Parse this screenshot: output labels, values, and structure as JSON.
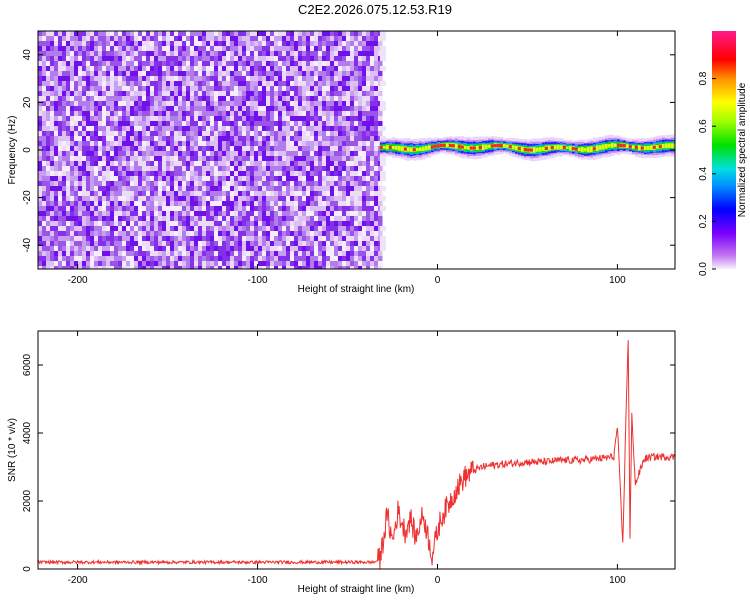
{
  "title": "C2E2.2026.075.12.53.R19",
  "chart_data": [
    {
      "type": "heatmap",
      "xlabel": "Height of straight line (km)",
      "ylabel": "Frequency (Hz)",
      "xlim": [
        -222,
        132
      ],
      "ylim": [
        -50,
        50
      ],
      "x_ticks": [
        -200,
        -100,
        0,
        100
      ],
      "y_ticks": [
        -40,
        -20,
        0,
        20,
        40
      ],
      "noise_region_x": [
        -222,
        -32
      ],
      "signal_region_x": [
        -32,
        132
      ],
      "signal_center_freq_hz": 1,
      "colorbar": {
        "label": "Normalized spectral amplitude",
        "range": [
          0,
          1
        ],
        "ticks": [
          "0.0",
          "0.2",
          "0.4",
          "0.6",
          "0.8"
        ],
        "colormap": "rainbow (magenta-blue-cyan-green-yellow-red-pink)"
      },
      "grid": false
    },
    {
      "type": "line",
      "xlabel": "Height of straight line (km)",
      "ylabel": "SNR (10 * v/v)",
      "xlim": [
        -222,
        132
      ],
      "ylim": [
        0,
        7000
      ],
      "x_ticks": [
        -200,
        -100,
        0,
        100
      ],
      "y_ticks": [
        0,
        2000,
        4000,
        6000
      ],
      "line_color": "#ee3030",
      "grid": false,
      "series": [
        {
          "x": [
            -222,
            -200,
            -150,
            -100,
            -50,
            -35,
            -32,
            -30,
            -28,
            -25,
            -22,
            -20,
            -18,
            -15,
            -12,
            -10,
            -8,
            -5,
            -3,
            0,
            2,
            5,
            10,
            15,
            20,
            25,
            30,
            40,
            50,
            60,
            70,
            80,
            90,
            98,
            100,
            103,
            105,
            106,
            107,
            108,
            110,
            115,
            120,
            125,
            132
          ],
          "y": [
            200,
            200,
            200,
            200,
            200,
            200,
            300,
            900,
            1600,
            800,
            1700,
            1400,
            1100,
            1500,
            900,
            1300,
            1600,
            900,
            400,
            1100,
            1500,
            1800,
            2300,
            2700,
            2900,
            3000,
            3050,
            3100,
            3150,
            3150,
            3200,
            3200,
            3250,
            3300,
            4200,
            700,
            5000,
            6800,
            900,
            4500,
            2500,
            3250,
            3300,
            3300,
            3300
          ]
        }
      ]
    }
  ]
}
